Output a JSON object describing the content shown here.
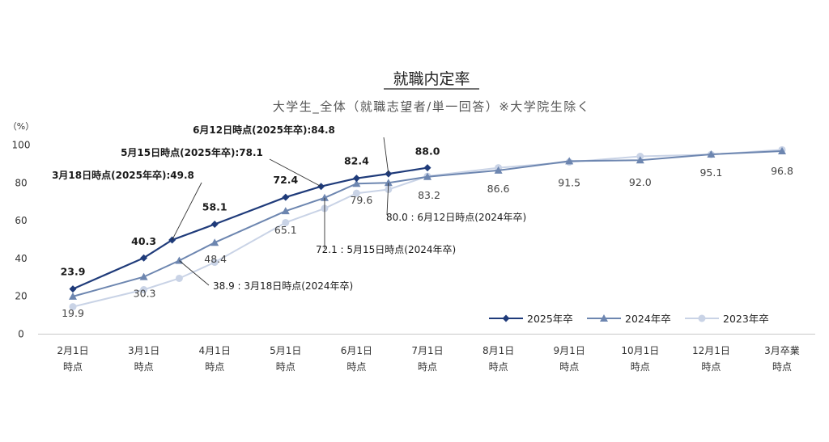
{
  "chart_data": {
    "type": "line",
    "title": "就職内定率",
    "subtitle": "大学生_全体（就職志望者/単一回答）※大学院生除く",
    "ylabel": "（%）",
    "xlabel": "",
    "ylim": [
      0,
      100
    ],
    "yticks": [
      "0",
      "20",
      "40",
      "60",
      "80",
      "100"
    ],
    "categories": [
      [
        "2月1日",
        "時点"
      ],
      [
        "3月1日",
        "時点"
      ],
      [
        "4月1日",
        "時点"
      ],
      [
        "5月1日",
        "時点"
      ],
      [
        "6月1日",
        "時点"
      ],
      [
        "7月1日",
        "時点"
      ],
      [
        "8月1日",
        "時点"
      ],
      [
        "9月1日",
        "時点"
      ],
      [
        "10月1日",
        "時点"
      ],
      [
        "12月1日",
        "時点"
      ],
      [
        "3月卒業",
        "時点"
      ]
    ],
    "grid": false,
    "legend_position": "bottom-right",
    "series": [
      {
        "name": "2025年卒",
        "color": "#1f3b7a",
        "marker": "diamond",
        "points": [
          {
            "x": 0,
            "y": 23.9
          },
          {
            "x": 1,
            "y": 40.3
          },
          {
            "x": 1.4,
            "y": 49.8
          },
          {
            "x": 2,
            "y": 58.1
          },
          {
            "x": 3,
            "y": 72.4
          },
          {
            "x": 3.5,
            "y": 78.1
          },
          {
            "x": 4,
            "y": 82.4
          },
          {
            "x": 4.45,
            "y": 84.8
          },
          {
            "x": 5,
            "y": 88.0
          }
        ]
      },
      {
        "name": "2024年卒",
        "color": "#6d86b0",
        "marker": "triangle",
        "points": [
          {
            "x": 0,
            "y": 19.9
          },
          {
            "x": 1,
            "y": 30.3
          },
          {
            "x": 1.5,
            "y": 38.9
          },
          {
            "x": 2,
            "y": 48.4
          },
          {
            "x": 3,
            "y": 65.1
          },
          {
            "x": 3.55,
            "y": 72.1
          },
          {
            "x": 4,
            "y": 79.6
          },
          {
            "x": 4.45,
            "y": 80.0
          },
          {
            "x": 5,
            "y": 83.2
          },
          {
            "x": 6,
            "y": 86.6
          },
          {
            "x": 7,
            "y": 91.5
          },
          {
            "x": 8,
            "y": 92.0
          },
          {
            "x": 9,
            "y": 95.1
          },
          {
            "x": 10,
            "y": 96.8
          }
        ]
      },
      {
        "name": "2023年卒",
        "color": "#c9d3e6",
        "marker": "circle",
        "points": [
          {
            "x": 0,
            "y": 14.5
          },
          {
            "x": 1,
            "y": 23.5
          },
          {
            "x": 1.5,
            "y": 29.5
          },
          {
            "x": 2,
            "y": 38.0
          },
          {
            "x": 3,
            "y": 59.0
          },
          {
            "x": 3.55,
            "y": 66.5
          },
          {
            "x": 4,
            "y": 74.5
          },
          {
            "x": 4.45,
            "y": 76.5
          },
          {
            "x": 5,
            "y": 83.5
          },
          {
            "x": 6,
            "y": 88.0
          },
          {
            "x": 7,
            "y": 91.0
          },
          {
            "x": 8,
            "y": 94.0
          },
          {
            "x": 9,
            "y": 95.0
          },
          {
            "x": 10,
            "y": 97.5
          }
        ]
      }
    ],
    "data_labels": [
      {
        "series": 0,
        "point": 0,
        "text": "23.9",
        "bold": true
      },
      {
        "series": 0,
        "point": 1,
        "text": "40.3",
        "bold": true
      },
      {
        "series": 0,
        "point": 3,
        "text": "58.1",
        "bold": true
      },
      {
        "series": 0,
        "point": 4,
        "text": "72.4",
        "bold": true
      },
      {
        "series": 0,
        "point": 6,
        "text": "82.4",
        "bold": true
      },
      {
        "series": 0,
        "point": 8,
        "text": "88.0",
        "bold": true
      },
      {
        "series": 1,
        "point": 0,
        "text": "19.9",
        "bold": false
      },
      {
        "series": 1,
        "point": 1,
        "text": "30.3",
        "bold": false
      },
      {
        "series": 1,
        "point": 3,
        "text": "48.4",
        "bold": false
      },
      {
        "series": 1,
        "point": 4,
        "text": "65.1",
        "bold": false
      },
      {
        "series": 1,
        "point": 6,
        "text": "79.6",
        "bold": false
      },
      {
        "series": 1,
        "point": 8,
        "text": "83.2",
        "bold": false
      },
      {
        "series": 1,
        "point": 9,
        "text": "86.6",
        "bold": false
      },
      {
        "series": 1,
        "point": 10,
        "text": "91.5",
        "bold": false
      },
      {
        "series": 1,
        "point": 11,
        "text": "92.0",
        "bold": false
      },
      {
        "series": 1,
        "point": 12,
        "text": "95.1",
        "bold": false
      },
      {
        "series": 1,
        "point": 13,
        "text": "96.8",
        "bold": false
      }
    ],
    "annotations": [
      {
        "series": 0,
        "point": 2,
        "text": "3月18日時点(2025年卒):49.8",
        "bold": true
      },
      {
        "series": 0,
        "point": 5,
        "text": "5月15日時点(2025年卒):78.1",
        "bold": true
      },
      {
        "series": 0,
        "point": 7,
        "text": "6月12日時点(2025年卒):84.8",
        "bold": true
      },
      {
        "series": 1,
        "point": 2,
        "text": "38.9 : 3月18日時点(2024年卒)",
        "bold": false
      },
      {
        "series": 1,
        "point": 5,
        "text": "72.1 : 5月15日時点(2024年卒)",
        "bold": false
      },
      {
        "series": 1,
        "point": 7,
        "text": "80.0 : 6月12日時点(2024年卒)",
        "bold": false
      }
    ]
  }
}
